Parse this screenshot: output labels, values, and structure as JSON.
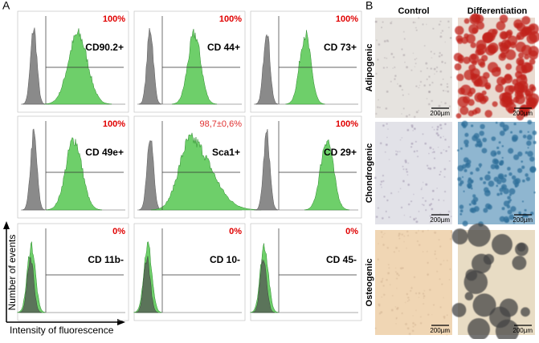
{
  "panel_a": {
    "label": "A",
    "histograms": [
      {
        "marker": "CD90.2+",
        "percent": "100%"
      },
      {
        "marker": "CD 44+",
        "percent": "100%"
      },
      {
        "marker": "CD 73+",
        "percent": "100%"
      },
      {
        "marker": "CD 49e+",
        "percent": "100%"
      },
      {
        "marker": "Sca1+",
        "percent": "98,7±0,6%"
      },
      {
        "marker": "CD 29+",
        "percent": "100%"
      },
      {
        "marker": "CD 11b-",
        "percent": "0%"
      },
      {
        "marker": "CD 10-",
        "percent": "0%"
      },
      {
        "marker": "CD 45-",
        "percent": "0%"
      }
    ],
    "y_axis_label": "Number of events",
    "x_axis_label": "Intensity of fluorescence"
  },
  "panel_b": {
    "label": "B",
    "columns": [
      "Control",
      "Differentiation"
    ],
    "rows": [
      {
        "name": "Adipogenic",
        "scale_bars": [
          "200µm",
          "200µm"
        ]
      },
      {
        "name": "Chondrogenic",
        "scale_bars": [
          "200µm",
          "200µm"
        ]
      },
      {
        "name": "Osteogenic",
        "scale_bars": [
          "200µm",
          "200µm"
        ]
      }
    ]
  }
}
